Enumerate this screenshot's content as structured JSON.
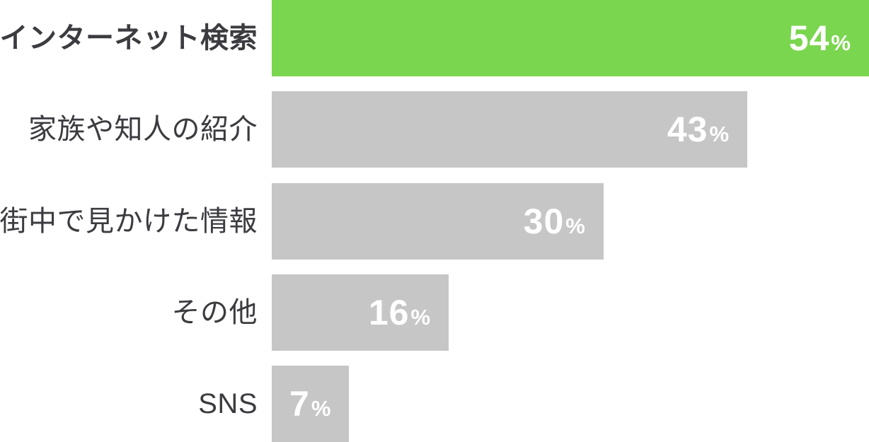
{
  "chart_data": {
    "type": "bar",
    "orientation": "horizontal",
    "title": "",
    "xlabel": "",
    "ylabel": "",
    "xlim": [
      0,
      54
    ],
    "grid": false,
    "legend": false,
    "categories": [
      "インターネット検索",
      "家族や知人の紹介",
      "街中で見かけた情報",
      "その他",
      "SNS"
    ],
    "values": [
      54,
      43,
      30,
      16,
      7
    ],
    "items": [
      {
        "label": "インターネット検索",
        "value": "54",
        "unit": "%",
        "numeric": 54,
        "highlighted": true
      },
      {
        "label": "家族や知人の紹介",
        "value": "43",
        "unit": "%",
        "numeric": 43,
        "highlighted": false
      },
      {
        "label": "街中で見かけた情報",
        "value": "30",
        "unit": "%",
        "numeric": 30,
        "highlighted": false
      },
      {
        "label": "その他",
        "value": "16",
        "unit": "%",
        "numeric": 16,
        "highlighted": false
      },
      {
        "label": "SNS",
        "value": "7",
        "unit": "%",
        "numeric": 7,
        "highlighted": false
      }
    ],
    "colors": {
      "highlight_bar": "#7BD64F",
      "default_bar": "#C6C6C6",
      "label_text": "#3B3B40",
      "value_text": "#FFFFFF",
      "background": "#FFFFFF"
    }
  }
}
